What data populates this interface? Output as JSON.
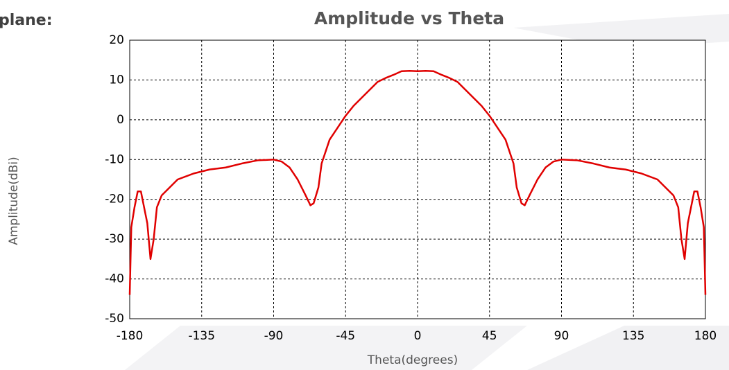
{
  "chart_data": {
    "type": "line",
    "side_label": "plane:",
    "title": "Amplitude vs Theta",
    "xlabel": "Theta(degrees)",
    "ylabel": "Amplitude(dBi)",
    "x": [
      -180,
      -179,
      -177,
      -175,
      -173,
      -171,
      -169,
      -167,
      -165,
      -163,
      -160,
      -155,
      -150,
      -140,
      -130,
      -120,
      -110,
      -100,
      -90,
      -85,
      -80,
      -75,
      -70,
      -67,
      -65,
      -62,
      -60,
      -55,
      -50,
      -45,
      -40,
      -35,
      -30,
      -25,
      -20,
      -15,
      -10,
      -5,
      0,
      5,
      10,
      15,
      20,
      25,
      30,
      35,
      40,
      45,
      50,
      55,
      60,
      62,
      65,
      67,
      70,
      75,
      80,
      85,
      90,
      100,
      110,
      120,
      130,
      140,
      150,
      155,
      160,
      163,
      165,
      167,
      169,
      171,
      173,
      175,
      177,
      179,
      180
    ],
    "series": [
      {
        "name": "Amplitude",
        "color": "#e00000",
        "values": [
          -44,
          -27,
          -22,
          -18,
          -18,
          -22,
          -26,
          -35,
          -30,
          -22,
          -19,
          -17,
          -15,
          -13.5,
          -12.5,
          -12,
          -11,
          -10.2,
          -10,
          -10.5,
          -12,
          -15,
          -19,
          -21.5,
          -21,
          -17,
          -11,
          -5,
          -2,
          1,
          3.5,
          5.5,
          7.5,
          9.5,
          10.5,
          11.3,
          12.2,
          12.3,
          12.2,
          12.3,
          12.2,
          11.3,
          10.5,
          9.5,
          7.5,
          5.5,
          3.5,
          1,
          -2,
          -5,
          -11,
          -17,
          -21,
          -21.5,
          -19,
          -15,
          -12,
          -10.5,
          -10,
          -10.2,
          -11,
          -12,
          -12.5,
          -13.5,
          -15,
          -17,
          -19,
          -22,
          -30,
          -35,
          -26,
          -22,
          -18,
          -18,
          -22,
          -27,
          -44
        ]
      }
    ],
    "xlim": [
      -180,
      180
    ],
    "xticks": [
      -180,
      -135,
      -90,
      -45,
      0,
      45,
      90,
      135,
      180
    ],
    "ylim": [
      -50,
      20
    ],
    "yticks": [
      -50,
      -40,
      -30,
      -20,
      -10,
      0,
      10,
      20
    ],
    "grid": true
  }
}
